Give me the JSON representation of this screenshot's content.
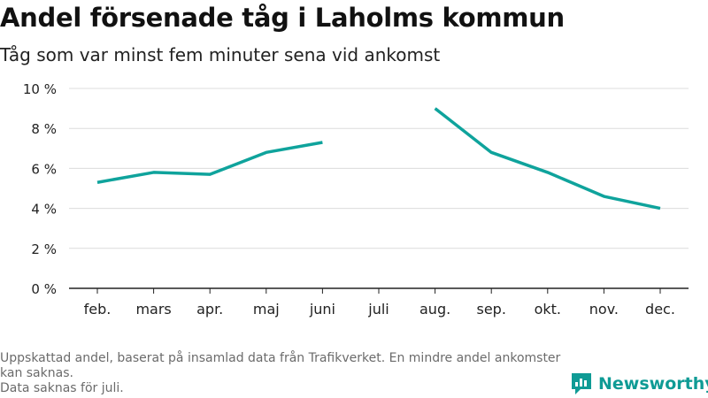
{
  "title": "Andel försenade tåg i Laholms kommun",
  "subtitle": "Tåg som var minst fem minuter sena vid ankomst",
  "footnote": {
    "lines": [
      "Uppskattad andel, baserat på insamlad data från Trafikverket. En mindre andel ankomster kan saknas.",
      "Data saknas för juli."
    ]
  },
  "brand": {
    "name": "Newsworthy",
    "icon": "newsworthy-logo-icon",
    "color": "#0f9b95"
  },
  "chart_data": {
    "type": "line",
    "categories": [
      "feb.",
      "mars",
      "apr.",
      "maj",
      "juni",
      "juli",
      "aug.",
      "sep.",
      "okt.",
      "nov.",
      "dec."
    ],
    "series": [
      {
        "values": [
          5.3,
          5.8,
          5.7,
          6.8,
          7.3,
          null,
          9.0,
          6.8,
          5.8,
          4.6,
          4.0
        ],
        "color": "#0fa39c"
      }
    ],
    "ylim": [
      0,
      10
    ],
    "yticks": [
      0,
      2,
      4,
      6,
      8,
      10
    ],
    "ytick_labels": [
      "0 %",
      "2 %",
      "4 %",
      "6 %",
      "8 %",
      "10 %"
    ],
    "grid": true,
    "xlabel": "",
    "ylabel": ""
  }
}
